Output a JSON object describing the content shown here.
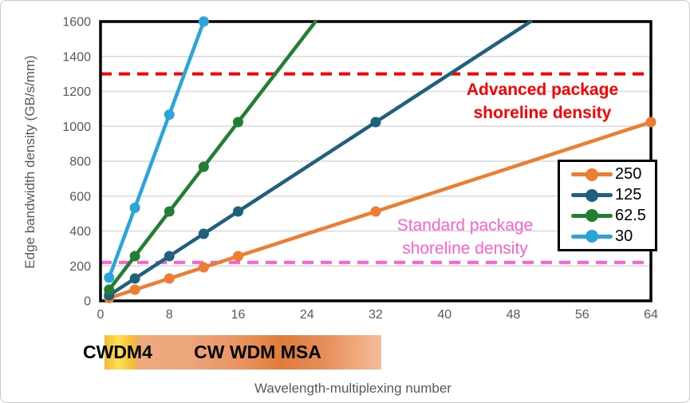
{
  "chart_data": {
    "type": "line",
    "title": "",
    "xlabel": "Wavelength-multiplexing number",
    "ylabel": "Edge bandwidth density (GB/s/mm)",
    "xlim": [
      0,
      64
    ],
    "ylim": [
      0,
      1600
    ],
    "x_ticks": [
      0,
      8,
      16,
      24,
      32,
      40,
      48,
      56,
      64
    ],
    "y_ticks": [
      0,
      200,
      400,
      600,
      800,
      1000,
      1200,
      1400,
      1600
    ],
    "grid": "horizontal-only",
    "legend_position": "middle-right",
    "colors": {
      "gridline": "#d9d9d9",
      "axis_border": "#000000",
      "tick_label": "#595959"
    },
    "series": [
      {
        "name": "250",
        "color": "#ED7D31",
        "marker_points": [
          [
            1,
            16
          ],
          [
            4,
            64
          ],
          [
            8,
            128
          ],
          [
            12,
            192
          ],
          [
            16,
            256
          ],
          [
            32,
            512
          ],
          [
            64,
            1024
          ]
        ],
        "line_points": [
          [
            1,
            16
          ],
          [
            4,
            64
          ],
          [
            8,
            128
          ],
          [
            12,
            192
          ],
          [
            16,
            256
          ],
          [
            32,
            512
          ],
          [
            64,
            1024
          ]
        ]
      },
      {
        "name": "125",
        "color": "#20607F",
        "marker_points": [
          [
            1,
            32
          ],
          [
            4,
            128
          ],
          [
            8,
            256
          ],
          [
            12,
            384
          ],
          [
            16,
            512
          ],
          [
            32,
            1024
          ]
        ],
        "line_points": [
          [
            1,
            32
          ],
          [
            4,
            128
          ],
          [
            8,
            256
          ],
          [
            12,
            384
          ],
          [
            16,
            512
          ],
          [
            32,
            1024
          ],
          [
            50,
            1600
          ]
        ]
      },
      {
        "name": "62.5",
        "color": "#217E33",
        "marker_points": [
          [
            1,
            64
          ],
          [
            4,
            256
          ],
          [
            8,
            512
          ],
          [
            12,
            768
          ],
          [
            16,
            1024
          ]
        ],
        "line_points": [
          [
            1,
            64
          ],
          [
            4,
            256
          ],
          [
            8,
            512
          ],
          [
            12,
            768
          ],
          [
            16,
            1024
          ],
          [
            25,
            1600
          ]
        ]
      },
      {
        "name": "30",
        "color": "#29A5DC",
        "marker_points": [
          [
            1,
            133
          ],
          [
            4,
            533
          ],
          [
            8,
            1067
          ],
          [
            12,
            1600
          ]
        ],
        "line_points": [
          [
            1,
            133
          ],
          [
            4,
            533
          ],
          [
            8,
            1067
          ],
          [
            12,
            1600
          ]
        ]
      }
    ],
    "reference_lines": [
      {
        "value": 1300,
        "color": "#FF0000",
        "label_lines": [
          "Advanced package",
          "shoreline density"
        ]
      },
      {
        "value": 220,
        "color": "#FF5FD2",
        "label_lines": [
          "Standard package",
          "shoreline density"
        ]
      }
    ],
    "bands": [
      {
        "label": "CWDM4",
        "x_start": 0.5,
        "x_end": 4.3
      },
      {
        "label": "CW WDM MSA",
        "x_start": 4.3,
        "x_end": 32.6
      }
    ]
  }
}
